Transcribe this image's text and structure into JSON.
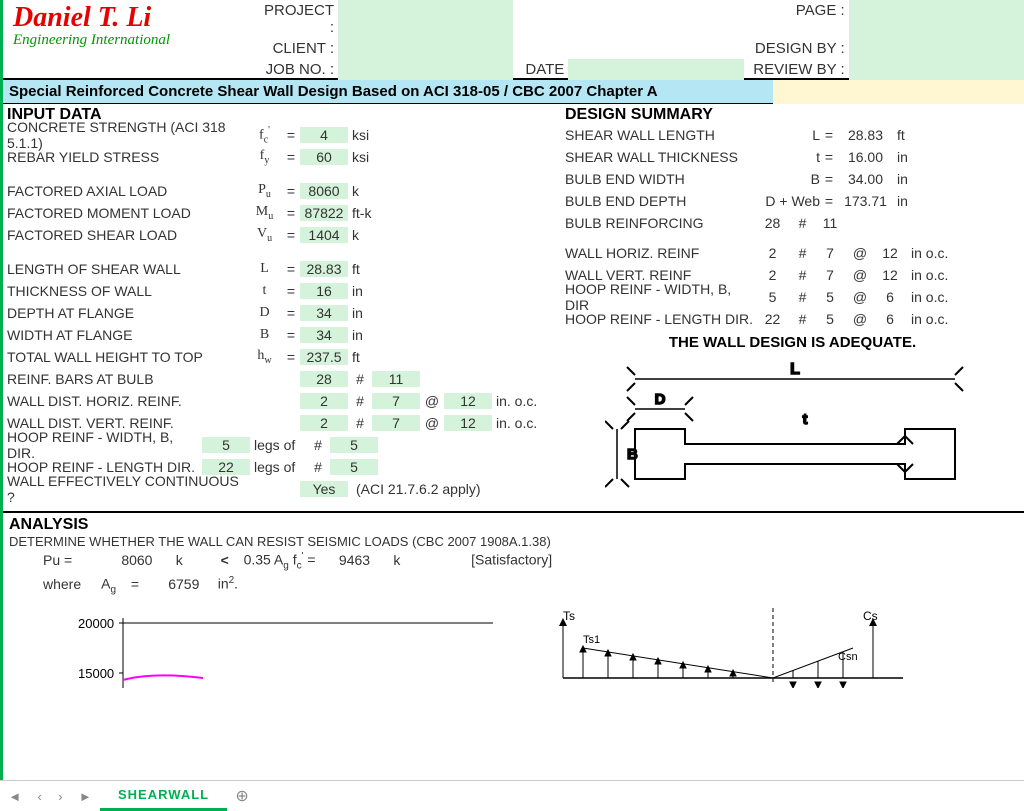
{
  "header": {
    "name": "Daniel T. Li",
    "subtitle": "Engineering International",
    "labels": {
      "project": "PROJECT :",
      "client": "CLIENT :",
      "jobno": "JOB NO. :",
      "date": "DATE :",
      "page": "PAGE :",
      "designby": "DESIGN BY :",
      "reviewby": "REVIEW BY :"
    },
    "values": {
      "project": "",
      "client": "",
      "jobno": "",
      "date": "",
      "page": "",
      "designby": "",
      "reviewby": ""
    }
  },
  "title": "Special Reinforced Concrete Shear Wall Design Based on ACI 318-05 / CBC 2007 Chapter A",
  "input": {
    "heading": "INPUT DATA",
    "rows": [
      {
        "desc": "CONCRETE STRENGTH (ACI 318 5.1.1)",
        "sym": "f",
        "sub": "c",
        "sup": "'",
        "val": "4",
        "unit": "ksi"
      },
      {
        "desc": "REBAR YIELD STRESS",
        "sym": "f",
        "sub": "y",
        "val": "60",
        "unit": "ksi"
      },
      {
        "spacer": true
      },
      {
        "desc": "FACTORED AXIAL LOAD",
        "sym": "P",
        "sub": "u",
        "val": "8060",
        "unit": "k"
      },
      {
        "desc": "FACTORED MOMENT LOAD",
        "sym": "M",
        "sub": "u",
        "val": "87822",
        "unit": "ft-k"
      },
      {
        "desc": "FACTORED SHEAR LOAD",
        "sym": "V",
        "sub": "u",
        "val": "1404",
        "unit": "k"
      },
      {
        "spacer": true
      },
      {
        "desc": "LENGTH OF SHEAR WALL",
        "sym": "L",
        "val": "28.83",
        "unit": "ft"
      },
      {
        "desc": "THICKNESS OF  WALL",
        "sym": "t",
        "val": "16",
        "unit": "in"
      },
      {
        "desc": "DEPTH AT FLANGE",
        "sym": "D",
        "val": "34",
        "unit": "in"
      },
      {
        "desc": "WIDTH AT FLANGE",
        "sym": "B",
        "val": "34",
        "unit": "in"
      },
      {
        "desc": "TOTAL WALL HEIGHT TO TOP",
        "sym": "h",
        "sub": "w",
        "val": "237.5",
        "unit": "ft"
      }
    ],
    "bulb": {
      "desc": "REINF.  BARS AT BULB",
      "n": "28",
      "size": "11"
    },
    "horiz": {
      "desc": "WALL DIST. HORIZ. REINF.",
      "n": "2",
      "size": "7",
      "sp": "12",
      "u": "in. o.c."
    },
    "vert": {
      "desc": "WALL DIST. VERT. REINF.",
      "n": "2",
      "size": "7",
      "sp": "12",
      "u": "in. o.c."
    },
    "hoopw": {
      "desc": "HOOP REINF - WIDTH, B, DIR.",
      "n": "5",
      "lbl": "legs of",
      "size": "5"
    },
    "hoopl": {
      "desc": "HOOP REINF - LENGTH DIR.",
      "n": "22",
      "lbl": "legs of",
      "size": "5"
    },
    "cont": {
      "desc": "WALL EFFECTIVELY CONTINUOUS ?",
      "val": "Yes",
      "note": "(ACI 21.7.6.2 apply)"
    }
  },
  "summary": {
    "heading": "DESIGN SUMMARY",
    "rows": [
      {
        "desc": "SHEAR WALL LENGTH",
        "sym": "L",
        "val": "28.83",
        "unit": "ft"
      },
      {
        "desc": "SHEAR WALL THICKNESS",
        "sym": "t",
        "val": "16.00",
        "unit": "in"
      },
      {
        "desc": "BULB END WIDTH",
        "sym": "B",
        "val": "34.00",
        "unit": "in"
      },
      {
        "desc": "BULB END DEPTH",
        "sym": "D + Web",
        "val": "173.71",
        "unit": "in"
      },
      {
        "desc": "BULB REINFORCING",
        "n": "28",
        "h": "#",
        "size": "11"
      },
      {
        "spacer": true
      },
      {
        "desc": "WALL HORIZ. REINF",
        "n": "2",
        "h": "#",
        "size": "7",
        "at": "@",
        "sp": "12",
        "u": "in o.c."
      },
      {
        "desc": "WALL VERT. REINF",
        "n": "2",
        "h": "#",
        "size": "7",
        "at": "@",
        "sp": "12",
        "u": "in o.c."
      },
      {
        "desc": "HOOP REINF - WIDTH, B, DIR",
        "n": "5",
        "h": "#",
        "size": "5",
        "at": "@",
        "sp": "6",
        "u": "in o.c."
      },
      {
        "desc": "HOOP REINF - LENGTH DIR.",
        "n": "22",
        "h": "#",
        "size": "5",
        "at": "@",
        "sp": "6",
        "u": "in o.c."
      }
    ],
    "adequate": "THE WALL DESIGN IS ADEQUATE.",
    "diagram": {
      "L": "L",
      "D": "D",
      "t": "t",
      "B": "B"
    }
  },
  "analysis": {
    "heading": "ANALYSIS",
    "sub": "DETERMINE WHETHER THE WALL CAN RESIST SEISMIC LOADS (CBC 2007 1908A.1.38)",
    "line1": {
      "lhs": "Pu =",
      "v1": "8060",
      "u1": "k",
      "cmp": "<",
      "rhs": "0.35 A",
      "sub": "g",
      "rhs2": " f",
      "sub2": "c",
      "sup": "'",
      "rhs3": " =",
      "v2": "9463",
      "u2": "k",
      "note": "[Satisfactory]"
    },
    "line2": {
      "pre": "where",
      "sym": "A",
      "sub": "g",
      "eq": "=",
      "v": "6759",
      "u": "in",
      "sup": "2",
      "dot": "."
    },
    "chart": {
      "ytick": "20000",
      "ytick2": "15000",
      "x_range": [
        0,
        400
      ],
      "curve_color": "#ff00ff",
      "axis_color": "#000000",
      "labels": {
        "Ts": "Ts",
        "Ts1": "Ts1",
        "Cs": "Cs",
        "Csn": "Csn"
      }
    }
  },
  "tabs": {
    "active": "SHEARWALL"
  },
  "colors": {
    "input_bg": "#d5f3db",
    "title_bg": "#b5e6f3",
    "title_right_bg": "#fff7d1",
    "accent": "#00b050",
    "name": "#e60000",
    "sub": "#009900"
  }
}
